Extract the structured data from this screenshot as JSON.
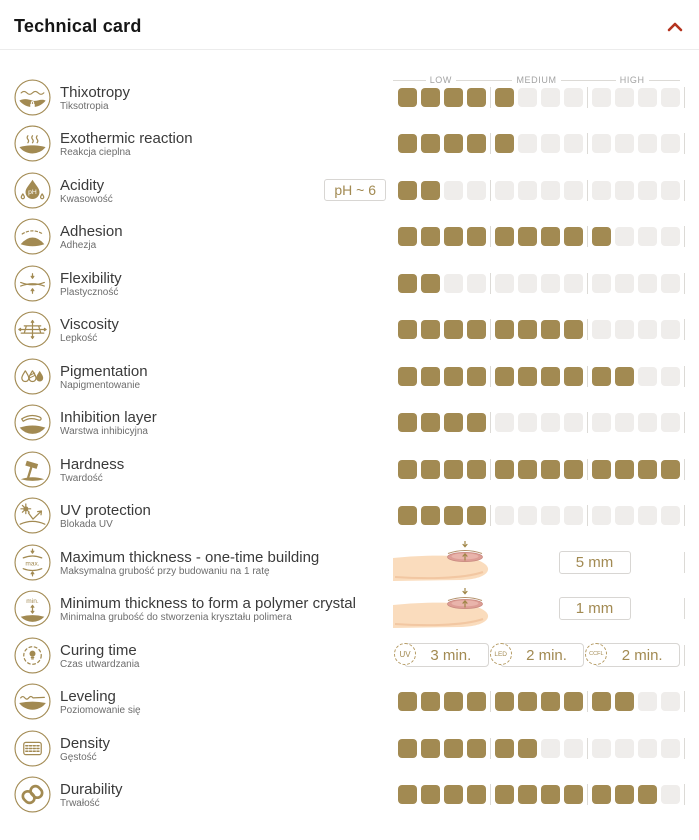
{
  "header": {
    "title": "Technical card",
    "collapse_icon": "chevron-up"
  },
  "colors": {
    "gold": "#a28a52",
    "empty_square": "#efedeb",
    "accent_red": "#b5341f",
    "divider": "#dcdad6"
  },
  "scale": {
    "labels": [
      "LOW",
      "MEDIUM",
      "HIGH"
    ],
    "squares_per_group": 4,
    "max": 12
  },
  "rows": [
    {
      "type": "rating",
      "name": "Thixotropy",
      "subtitle": "Tiksotropia",
      "icon": "thixotropy-icon",
      "value": 5,
      "max": 12
    },
    {
      "type": "rating",
      "name": "Exothermic reaction",
      "subtitle": "Reakcja cieplna",
      "icon": "exothermic-reaction-icon",
      "value": 5,
      "max": 12
    },
    {
      "type": "rating",
      "name": "Acidity",
      "subtitle": "Kwasowość",
      "icon": "acidity-icon",
      "value": 2,
      "max": 12,
      "badge": "pH ~ 6"
    },
    {
      "type": "rating",
      "name": "Adhesion",
      "subtitle": "Adhezja",
      "icon": "adhesion-icon",
      "value": 9,
      "max": 12
    },
    {
      "type": "rating",
      "name": "Flexibility",
      "subtitle": "Plastyczność",
      "icon": "flexibility-icon",
      "value": 2,
      "max": 12
    },
    {
      "type": "rating",
      "name": "Viscosity",
      "subtitle": "Lepkość",
      "icon": "viscosity-icon",
      "value": 8,
      "max": 12
    },
    {
      "type": "rating",
      "name": "Pigmentation",
      "subtitle": "Napigmentowanie",
      "icon": "pigmentation-icon",
      "value": 10,
      "max": 12
    },
    {
      "type": "rating",
      "name": "Inhibition layer",
      "subtitle": "Warstwa inhibicyjna",
      "icon": "inhibition-layer-icon",
      "value": 4,
      "max": 12
    },
    {
      "type": "rating",
      "name": "Hardness",
      "subtitle": "Twardość",
      "icon": "hardness-icon",
      "value": 12,
      "max": 12
    },
    {
      "type": "rating",
      "name": "UV protection",
      "subtitle": "Blokada UV",
      "icon": "uv-protection-icon",
      "value": 4,
      "max": 12
    },
    {
      "type": "measure",
      "name": "Maximum thickness - one-time building",
      "subtitle": "Maksymalna grubość przy budowaniu na 1 ratę",
      "icon": "max-thickness-icon",
      "illustration": "fingertip-nail",
      "value": "5 mm"
    },
    {
      "type": "measure",
      "name": "Minimum thickness to form a polymer crystal",
      "subtitle": "Minimalna grubość do stworzenia kryształu polimera",
      "icon": "min-thickness-icon",
      "illustration": "fingertip-nail",
      "value": "1 mm"
    },
    {
      "type": "curing",
      "name": "Curing time",
      "subtitle": "Czas utwardzania",
      "icon": "curing-time-icon",
      "times": [
        {
          "lamp": "UV",
          "time": "3 min."
        },
        {
          "lamp": "LED",
          "time": "2 min."
        },
        {
          "lamp": "CCFL",
          "time": "2 min."
        }
      ]
    },
    {
      "type": "rating",
      "name": "Leveling",
      "subtitle": "Poziomowanie się",
      "icon": "leveling-icon",
      "value": 10,
      "max": 12
    },
    {
      "type": "rating",
      "name": "Density",
      "subtitle": "Gęstość",
      "icon": "density-icon",
      "value": 6,
      "max": 12
    },
    {
      "type": "rating",
      "name": "Durability",
      "subtitle": "Trwałość",
      "icon": "durability-icon",
      "value": 11,
      "max": 12
    }
  ]
}
